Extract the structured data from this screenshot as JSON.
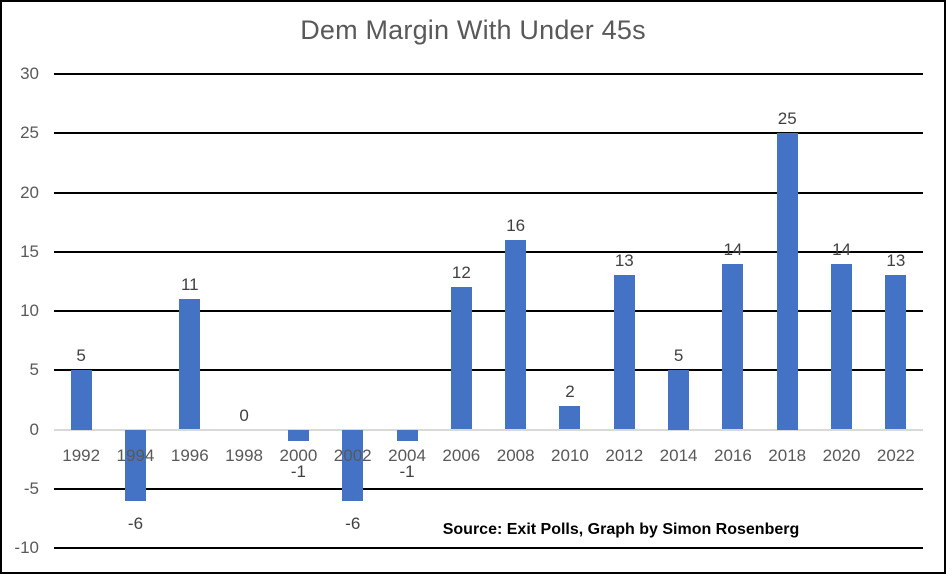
{
  "chart_data": {
    "type": "bar",
    "title": "Dem Margin With Under 45s",
    "source_note": "Source: Exit Polls, Graph by Simon Rosenberg",
    "categories": [
      "1992",
      "1994",
      "1996",
      "1998",
      "2000",
      "2002",
      "2004",
      "2006",
      "2008",
      "2010",
      "2012",
      "2014",
      "2016",
      "2018",
      "2020",
      "2022"
    ],
    "values": [
      5,
      -6,
      11,
      0,
      -1,
      -6,
      -1,
      12,
      16,
      2,
      13,
      5,
      14,
      25,
      14,
      13
    ],
    "xlabel": "",
    "ylabel": "",
    "ylim": [
      -10,
      30
    ],
    "ytick_step": 5,
    "yticks": [
      30,
      25,
      20,
      15,
      10,
      5,
      0,
      -5,
      -10
    ],
    "grid": true,
    "legend": false,
    "data_labels": true,
    "colors": {
      "bar": "#4472C4",
      "gridline": "#000000",
      "zero_line": "#D9D9D9",
      "title": "#595959",
      "axis_labels": "#595959",
      "data_labels": "#404040",
      "source_note": "#000000",
      "border": "#000000",
      "background": "#FFFFFF"
    }
  }
}
